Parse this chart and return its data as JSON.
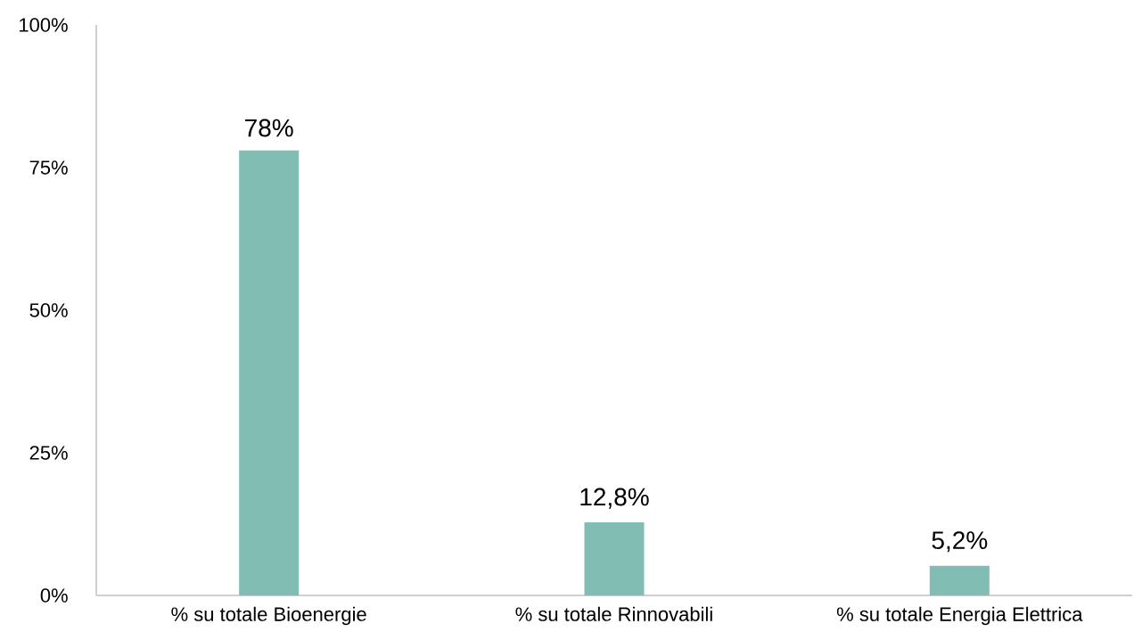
{
  "chart_data": {
    "type": "bar",
    "categories": [
      "% su totale Bioenergie",
      "% su totale Rinnovabili",
      "% su totale Energia Elettrica"
    ],
    "values": [
      78,
      12.8,
      5.2
    ],
    "value_labels": [
      "78%",
      "12,8%",
      "5,2%"
    ],
    "color": "#82bdb4",
    "ylim": [
      0,
      100
    ],
    "yticks": [
      {
        "value": 0,
        "label": "0%"
      },
      {
        "value": 25,
        "label": "25%"
      },
      {
        "value": 50,
        "label": "50%"
      },
      {
        "value": 75,
        "label": "75%"
      },
      {
        "value": 100,
        "label": "100%"
      }
    ],
    "grid": false
  }
}
